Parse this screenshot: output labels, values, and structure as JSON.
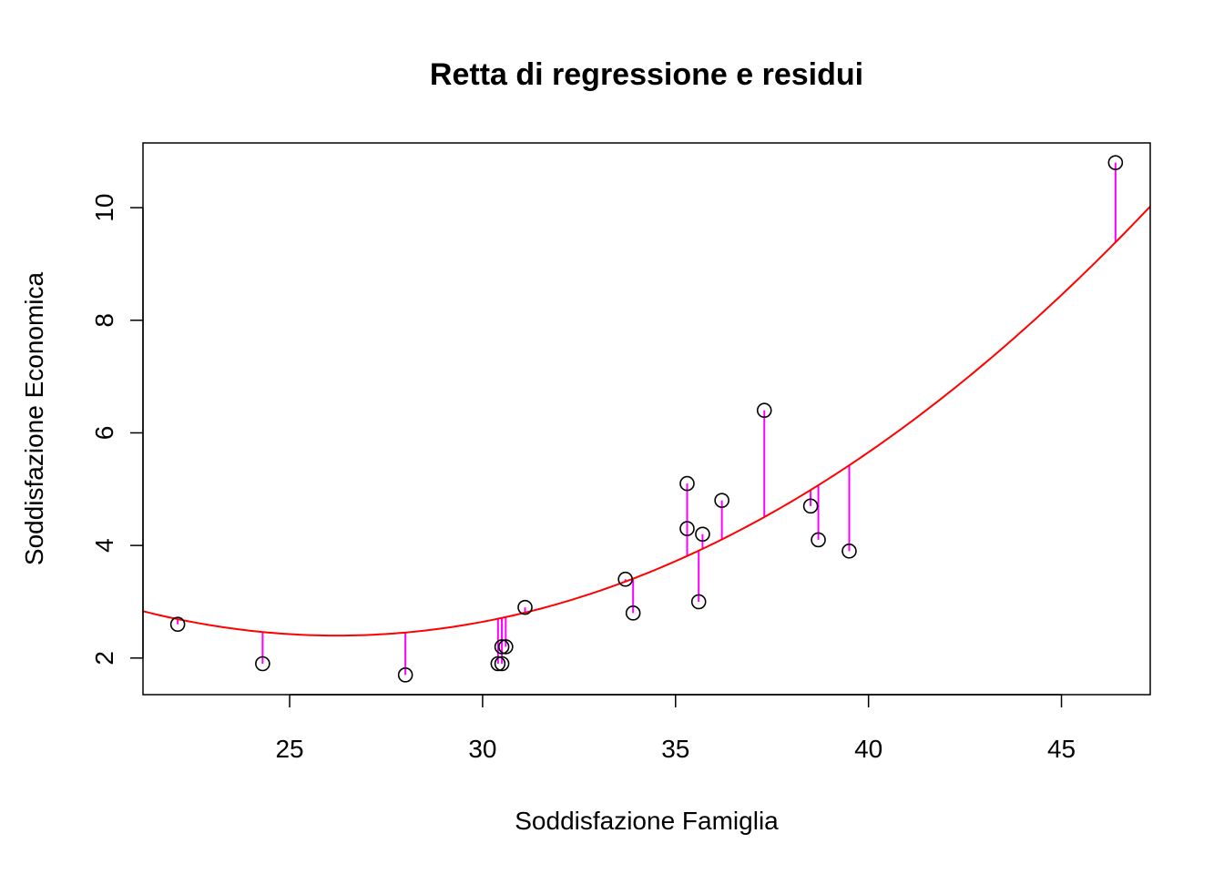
{
  "chart_data": {
    "type": "scatter",
    "title": "Retta di regressione e residui",
    "xlabel": "Soddisfazione Famiglia",
    "ylabel": "Soddisfazione Economica",
    "xlim": [
      21.2,
      47.3
    ],
    "ylim": [
      1.35,
      11.15
    ],
    "x_ticks": [
      "25",
      "30",
      "35",
      "40",
      "45"
    ],
    "y_ticks": [
      "2",
      "4",
      "6",
      "8",
      "10"
    ],
    "grid": false,
    "legend": "none",
    "points": [
      {
        "x": 22.1,
        "y": 2.6
      },
      {
        "x": 24.3,
        "y": 1.9
      },
      {
        "x": 28.0,
        "y": 1.7
      },
      {
        "x": 30.4,
        "y": 1.9
      },
      {
        "x": 30.5,
        "y": 1.9
      },
      {
        "x": 30.5,
        "y": 2.2
      },
      {
        "x": 30.6,
        "y": 2.2
      },
      {
        "x": 31.1,
        "y": 2.9
      },
      {
        "x": 33.7,
        "y": 3.4
      },
      {
        "x": 33.9,
        "y": 2.8
      },
      {
        "x": 35.3,
        "y": 5.1
      },
      {
        "x": 35.3,
        "y": 4.3
      },
      {
        "x": 35.6,
        "y": 3.0
      },
      {
        "x": 35.7,
        "y": 4.2
      },
      {
        "x": 36.2,
        "y": 4.8
      },
      {
        "x": 37.3,
        "y": 6.4
      },
      {
        "x": 38.5,
        "y": 4.7
      },
      {
        "x": 38.7,
        "y": 4.1
      },
      {
        "x": 39.5,
        "y": 3.9
      },
      {
        "x": 46.4,
        "y": 10.8
      }
    ],
    "fit": {
      "type": "quadratic",
      "coefficients": [
        14.2,
        -0.9,
        0.01716
      ]
    },
    "colors": {
      "points": "#000000",
      "fit": "#ff0000",
      "residuals": "#ff00ff"
    }
  }
}
